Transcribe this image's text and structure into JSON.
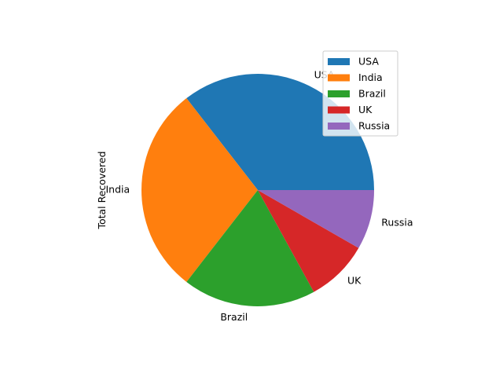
{
  "chart_data": {
    "type": "pie",
    "ylabel": "Total Recovered",
    "categories": [
      "USA",
      "India",
      "Brazil",
      "UK",
      "Russia"
    ],
    "values": [
      35.5,
      29.0,
      18.5,
      8.7,
      8.3
    ],
    "colors": [
      "#1f77b4",
      "#ff7f0e",
      "#2ca02c",
      "#d62728",
      "#9467bd"
    ],
    "legend": {
      "placement": "top-right",
      "entries": [
        "USA",
        "India",
        "Brazil",
        "UK",
        "Russia"
      ]
    },
    "start_angle_deg": 0,
    "direction": "counterclockwise"
  }
}
